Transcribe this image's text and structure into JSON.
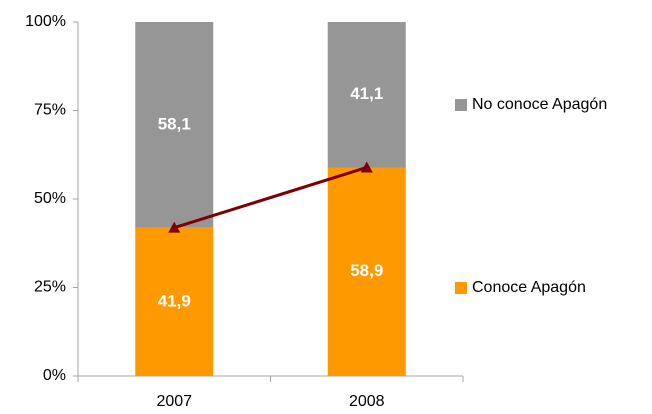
{
  "chart_data": {
    "type": "stacked_bar",
    "categories": [
      "2007",
      "2008"
    ],
    "series": [
      {
        "name": "Conoce Apagón",
        "color": "#ff9900",
        "values": [
          41.9,
          58.9
        ],
        "value_labels": [
          "41,9",
          "58,9"
        ]
      },
      {
        "name": "No conoce Apagón",
        "color": "#969696",
        "values": [
          58.1,
          41.1
        ],
        "value_labels": [
          "58,1",
          "41,1"
        ]
      }
    ],
    "overlay_line": {
      "series": 0,
      "color": "#7f0000",
      "marker": "triangle"
    },
    "ylim": [
      0,
      100
    ],
    "yticks": [
      {
        "value": 0,
        "label": "0%"
      },
      {
        "value": 25,
        "label": "25%"
      },
      {
        "value": 50,
        "label": "50%"
      },
      {
        "value": 75,
        "label": "75%"
      },
      {
        "value": 100,
        "label": "100%"
      }
    ],
    "grid": false,
    "legend": "right"
  }
}
